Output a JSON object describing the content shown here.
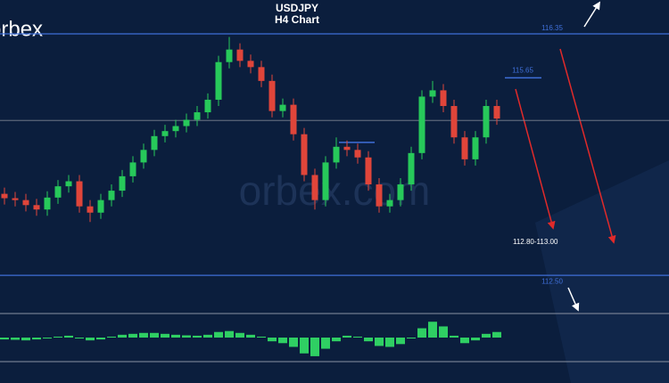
{
  "logo": "orbex",
  "watermark": "orbex.com",
  "chart_data": [
    {
      "type": "candlestick",
      "title": "USDJPY",
      "subtitle": "H4 Chart",
      "open": [
        113.8,
        113.73,
        113.7,
        113.62,
        113.55,
        113.74,
        113.92,
        114.0,
        113.6,
        113.5,
        113.7,
        113.85,
        114.08,
        114.3,
        114.5,
        114.72,
        114.8,
        114.88,
        114.98,
        115.1,
        115.3,
        115.9,
        116.1,
        115.92,
        115.82,
        115.6,
        115.12,
        115.22,
        114.75,
        114.1,
        113.7,
        114.3,
        114.55,
        114.5,
        114.38,
        113.95,
        113.6,
        113.7,
        113.95,
        114.45,
        115.35,
        115.45,
        115.2,
        114.7,
        114.35,
        114.7,
        115.2
      ],
      "high": [
        113.9,
        113.83,
        113.8,
        113.72,
        113.84,
        114.02,
        114.1,
        114.1,
        113.7,
        113.8,
        113.95,
        114.18,
        114.4,
        114.6,
        114.82,
        114.9,
        114.98,
        115.08,
        115.2,
        115.4,
        116.0,
        116.3,
        116.2,
        116.02,
        115.92,
        115.7,
        115.32,
        115.32,
        114.85,
        114.2,
        114.4,
        114.7,
        114.65,
        114.6,
        114.48,
        114.05,
        113.8,
        114.05,
        114.55,
        115.45,
        115.6,
        115.55,
        115.3,
        114.8,
        114.8,
        115.3,
        115.3
      ],
      "low": [
        113.63,
        113.6,
        113.52,
        113.45,
        113.45,
        113.64,
        113.82,
        113.5,
        113.35,
        113.4,
        113.6,
        113.75,
        113.98,
        114.2,
        114.4,
        114.62,
        114.7,
        114.78,
        114.88,
        115.0,
        115.2,
        115.8,
        115.82,
        115.72,
        115.5,
        115.02,
        115.02,
        114.65,
        114.0,
        113.55,
        113.6,
        114.2,
        114.4,
        114.28,
        113.85,
        113.5,
        113.5,
        113.6,
        113.85,
        114.35,
        115.25,
        115.1,
        114.6,
        114.25,
        114.25,
        114.6,
        114.9
      ],
      "close": [
        113.73,
        113.7,
        113.62,
        113.55,
        113.74,
        113.92,
        114.0,
        113.6,
        113.5,
        113.7,
        113.85,
        114.08,
        114.3,
        114.5,
        114.72,
        114.8,
        114.88,
        114.98,
        115.1,
        115.3,
        115.9,
        116.1,
        115.92,
        115.82,
        115.6,
        115.12,
        115.22,
        114.75,
        114.1,
        113.7,
        114.3,
        114.55,
        114.5,
        114.38,
        113.95,
        113.6,
        113.7,
        113.95,
        114.45,
        115.35,
        115.45,
        115.2,
        114.7,
        114.35,
        114.7,
        115.2,
        115.0
      ],
      "up_color": "#27c95a",
      "down_color": "#e0453a",
      "ylim": [
        111.92,
        116.89
      ],
      "levels": [
        116.35,
        115.65,
        {
          "value": 112.5,
          "label": "112.50"
        }
      ],
      "level_color": "#3f6fd8",
      "reference_lines": [
        114.97,
        114.62
      ],
      "annotation": "112.80-113.00"
    },
    {
      "type": "bar",
      "values": [
        -0.1,
        -0.12,
        -0.15,
        -0.1,
        -0.05,
        0.05,
        0.1,
        -0.05,
        -0.15,
        -0.1,
        0.05,
        0.15,
        0.2,
        0.25,
        0.25,
        0.2,
        0.15,
        0.12,
        0.1,
        0.15,
        0.3,
        0.35,
        0.25,
        0.15,
        0.05,
        -0.2,
        -0.3,
        -0.5,
        -0.85,
        -1.0,
        -0.6,
        -0.2,
        0.1,
        0.05,
        -0.2,
        -0.45,
        -0.5,
        -0.35,
        -0.05,
        0.5,
        0.85,
        0.6,
        0.1,
        -0.3,
        -0.15,
        0.2,
        0.3
      ],
      "color": "#2fcf63",
      "ylim": [
        -1.1,
        1.1
      ]
    }
  ]
}
